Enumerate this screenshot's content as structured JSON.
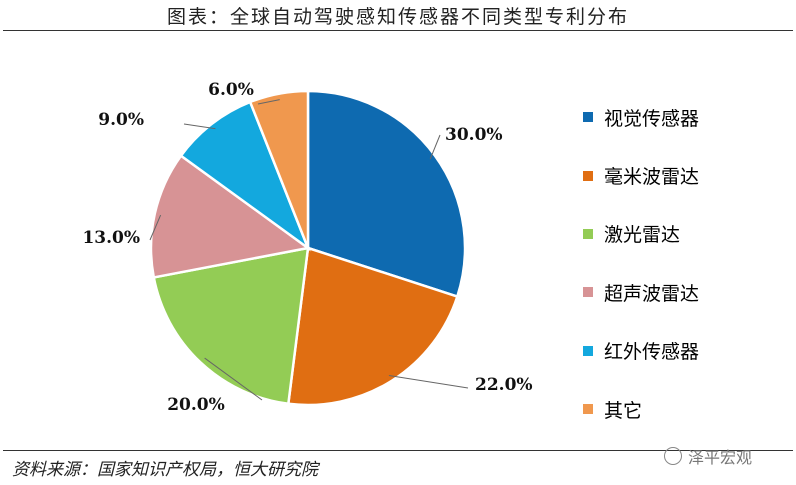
{
  "header": {
    "title": "图表：全球自动驾驶感知传感器不同类型专利分布"
  },
  "footer": {
    "source": "资料来源：国家知识产权局，恒大研究院",
    "watermark": "泽平宏观"
  },
  "chart_data": {
    "type": "pie",
    "title": "图表：全球自动驾驶感知传感器不同类型专利分布",
    "legend_position": "right",
    "start": "top, clockwise",
    "slices": [
      {
        "label": "视觉传感器",
        "value": 30.0,
        "value_label": "30.0%",
        "color": "#0e6ab0"
      },
      {
        "label": "毫米波雷达",
        "value": 22.0,
        "value_label": "22.0%",
        "color": "#e06e12"
      },
      {
        "label": "激光雷达",
        "value": 20.0,
        "value_label": "20.0%",
        "color": "#93cc55"
      },
      {
        "label": "超声波雷达",
        "value": 13.0,
        "value_label": "13.0%",
        "color": "#d79395"
      },
      {
        "label": "红外传感器",
        "value": 9.0,
        "value_label": "9.0%",
        "color": "#13a8de"
      },
      {
        "label": "其它",
        "value": 6.0,
        "value_label": "6.0%",
        "color": "#f0984e"
      }
    ]
  }
}
